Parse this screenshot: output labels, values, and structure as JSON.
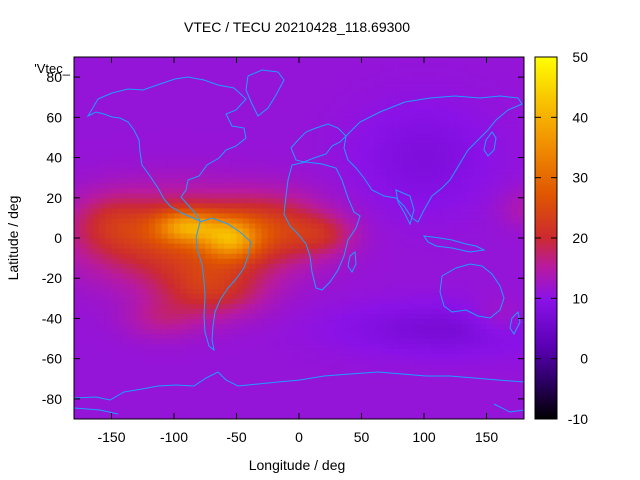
{
  "chart_data": {
    "type": "heatmap",
    "title": "VTEC / TECU 20210428_118.69300",
    "xlabel": "Longitude / deg",
    "ylabel": "Latitude / deg",
    "key_label": "'Vtec_",
    "xlim": [
      -180,
      180
    ],
    "ylim": [
      -90,
      90
    ],
    "x_ticks": [
      -150,
      -100,
      -50,
      0,
      50,
      100,
      150
    ],
    "y_ticks": [
      -80,
      -60,
      -40,
      -20,
      0,
      20,
      40,
      60,
      80
    ],
    "colorbar": {
      "range": [
        -10,
        50
      ],
      "ticks": [
        -10,
        0,
        10,
        20,
        30,
        40,
        50
      ],
      "palette": "black-purple-red-orange-yellow"
    },
    "overlay": "coastlines",
    "overlay_color": "#1e9fff",
    "field_summary": {
      "background_tecu": 11,
      "peak_tecu": 50,
      "peak_locations_lon_lat": [
        [
          -100,
          7
        ],
        [
          -55,
          0
        ]
      ],
      "equatorial_anomaly_band": "roughly 170W to 40E between 30S and 25N",
      "notes": "lowest values (~7 TECU) at high southern latitudes and over Asia"
    }
  }
}
